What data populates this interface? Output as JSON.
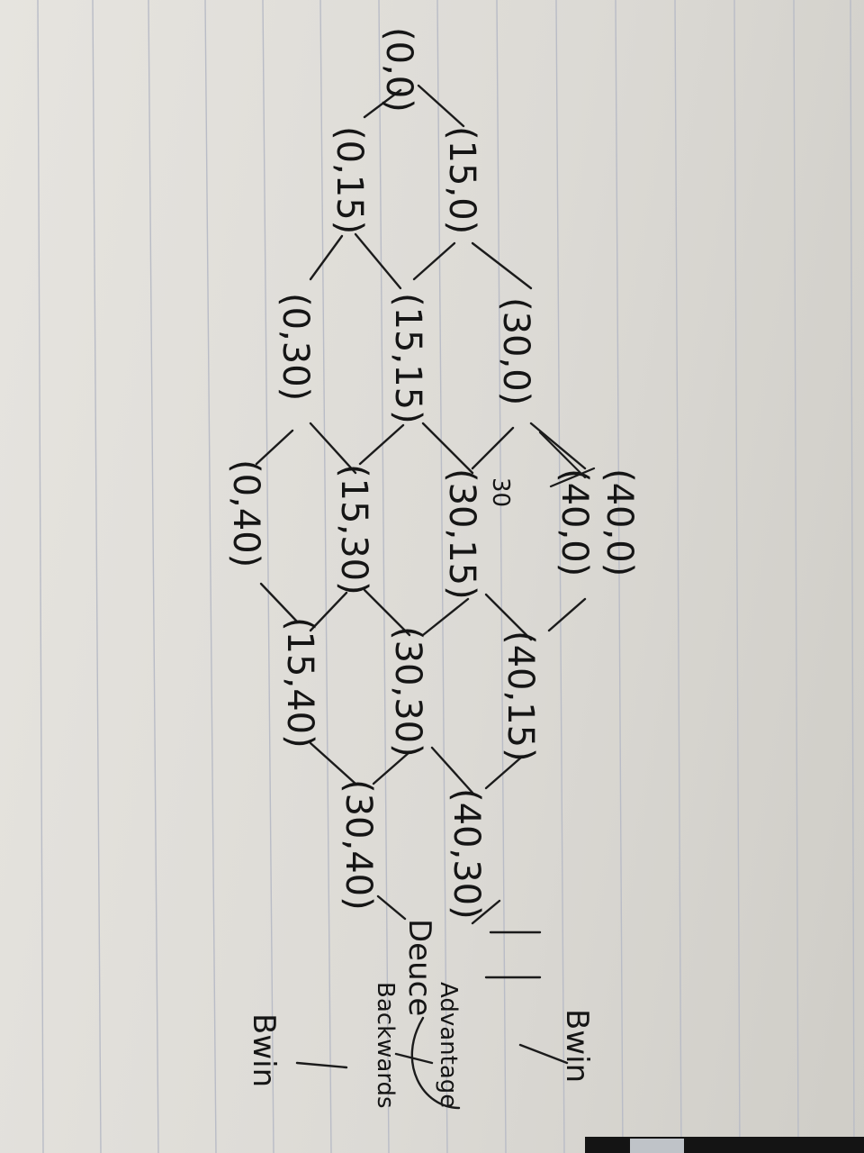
{
  "nodes": [
    {
      "id": "n00",
      "text": "(0,0)"
    },
    {
      "id": "n150",
      "text": "(15,0)"
    },
    {
      "id": "n015",
      "text": "(0,15)"
    },
    {
      "id": "n300",
      "text": "(30,0)"
    },
    {
      "id": "n1515",
      "text": "(15,15)"
    },
    {
      "id": "n030",
      "text": "(0,30)"
    },
    {
      "id": "n400",
      "text": "(40,0)"
    },
    {
      "id": "n400x",
      "text": "(40,0)"
    },
    {
      "id": "n3015",
      "text": "(30,15)"
    },
    {
      "id": "n1530",
      "text": "(15,30)"
    },
    {
      "id": "n040",
      "text": "(0,40)"
    },
    {
      "id": "n4015",
      "text": "(40,15)"
    },
    {
      "id": "n3030",
      "text": "(30,30)"
    },
    {
      "id": "n1540",
      "text": "(15,40)"
    },
    {
      "id": "n4030",
      "text": "(40,30)"
    },
    {
      "id": "n3040",
      "text": "(30,40)"
    }
  ],
  "annotations": {
    "deuce": "Deuce",
    "advantage": "Advantage",
    "backwards": "Backwards",
    "win_top": "Bwin",
    "win_bottom": "Bwin",
    "thirty_note": "30"
  },
  "colors": {
    "ink": "#1b1b1b",
    "paper": "#e2e0db",
    "rule_line": "#b9bcc6"
  }
}
